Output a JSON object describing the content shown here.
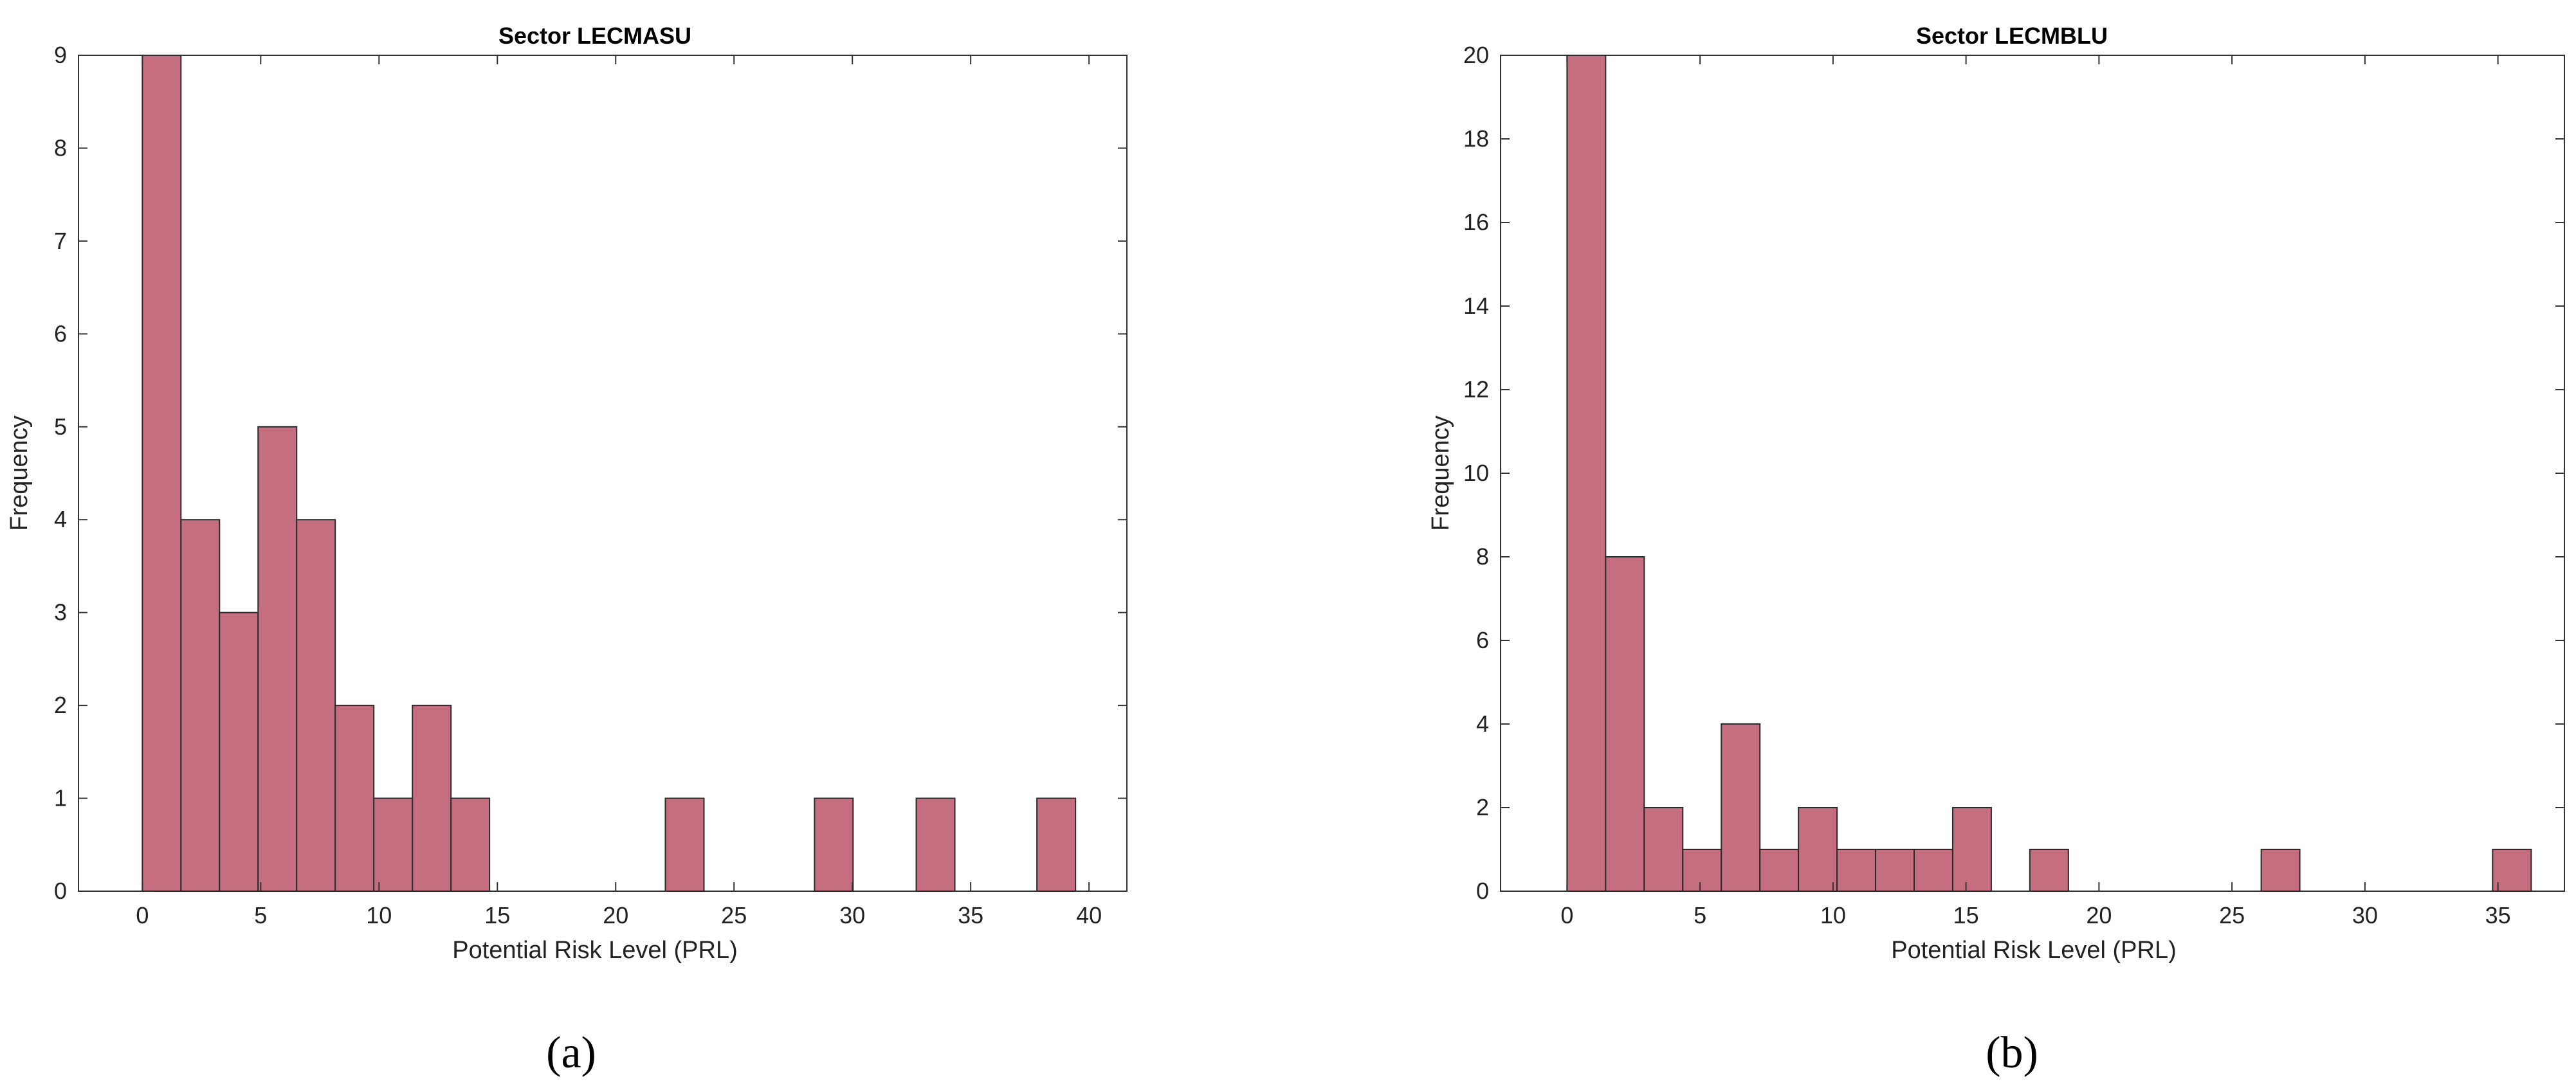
{
  "chart_data": [
    {
      "type": "bar",
      "panel_label": "(a)",
      "title": "Sector LECMASU",
      "xlabel": "Potential Risk Level (PRL)",
      "ylabel": "Frequency",
      "xlim": [
        -2.7,
        41.6
      ],
      "ylim": [
        0,
        9
      ],
      "xticks": [
        0,
        5,
        10,
        15,
        20,
        25,
        30,
        35,
        40
      ],
      "yticks": [
        0,
        1,
        2,
        3,
        4,
        5,
        6,
        7,
        8,
        9
      ],
      "grid": false,
      "bar_color": "#c46e80",
      "bin_width": 1.63,
      "bins": [
        {
          "x0": 0.0,
          "count": 9
        },
        {
          "x0": 1.63,
          "count": 4
        },
        {
          "x0": 3.26,
          "count": 3
        },
        {
          "x0": 4.89,
          "count": 5
        },
        {
          "x0": 6.52,
          "count": 4
        },
        {
          "x0": 8.15,
          "count": 2
        },
        {
          "x0": 9.78,
          "count": 1
        },
        {
          "x0": 11.41,
          "count": 2
        },
        {
          "x0": 13.04,
          "count": 1
        },
        {
          "x0": 22.1,
          "count": 1
        },
        {
          "x0": 28.4,
          "count": 1
        },
        {
          "x0": 32.7,
          "count": 1
        },
        {
          "x0": 37.8,
          "count": 1
        }
      ]
    },
    {
      "type": "bar",
      "panel_label": "(b)",
      "title": "Sector LECMBLU",
      "xlabel": "Potential Risk Level (PRL)",
      "ylabel": "Frequency",
      "xlim": [
        -2.5,
        37.5
      ],
      "ylim": [
        0,
        20
      ],
      "xticks": [
        0,
        5,
        10,
        15,
        20,
        25,
        30,
        35
      ],
      "yticks": [
        0,
        2,
        4,
        6,
        8,
        10,
        12,
        14,
        16,
        18,
        20
      ],
      "grid": false,
      "bar_color": "#c46e80",
      "bin_width": 1.45,
      "bins": [
        {
          "x0": 0.0,
          "count": 20
        },
        {
          "x0": 1.45,
          "count": 8
        },
        {
          "x0": 2.9,
          "count": 2
        },
        {
          "x0": 4.35,
          "count": 1
        },
        {
          "x0": 5.8,
          "count": 4
        },
        {
          "x0": 7.25,
          "count": 1
        },
        {
          "x0": 8.7,
          "count": 2
        },
        {
          "x0": 10.15,
          "count": 1
        },
        {
          "x0": 11.6,
          "count": 1
        },
        {
          "x0": 13.05,
          "count": 1
        },
        {
          "x0": 14.5,
          "count": 2
        },
        {
          "x0": 17.4,
          "count": 1
        },
        {
          "x0": 26.1,
          "count": 1
        },
        {
          "x0": 34.8,
          "count": 1
        }
      ]
    }
  ]
}
